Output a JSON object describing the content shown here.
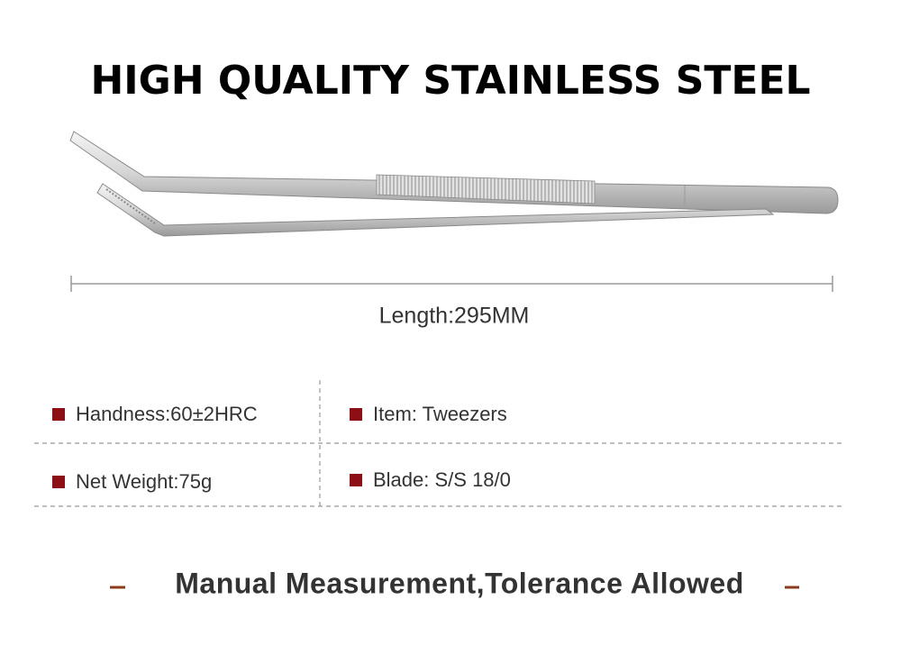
{
  "header": {
    "title": "HIGH QUALITY STAINLESS STEEL"
  },
  "dimension": {
    "label": "Length:295MM"
  },
  "specs": {
    "rows": [
      [
        "Handness:60±2HRC",
        "Item: Tweezers"
      ],
      [
        "Net Weight:75g",
        "Blade: S/S 18/0"
      ]
    ]
  },
  "footer": {
    "note": "Manual Measurement,Tolerance Allowed"
  }
}
